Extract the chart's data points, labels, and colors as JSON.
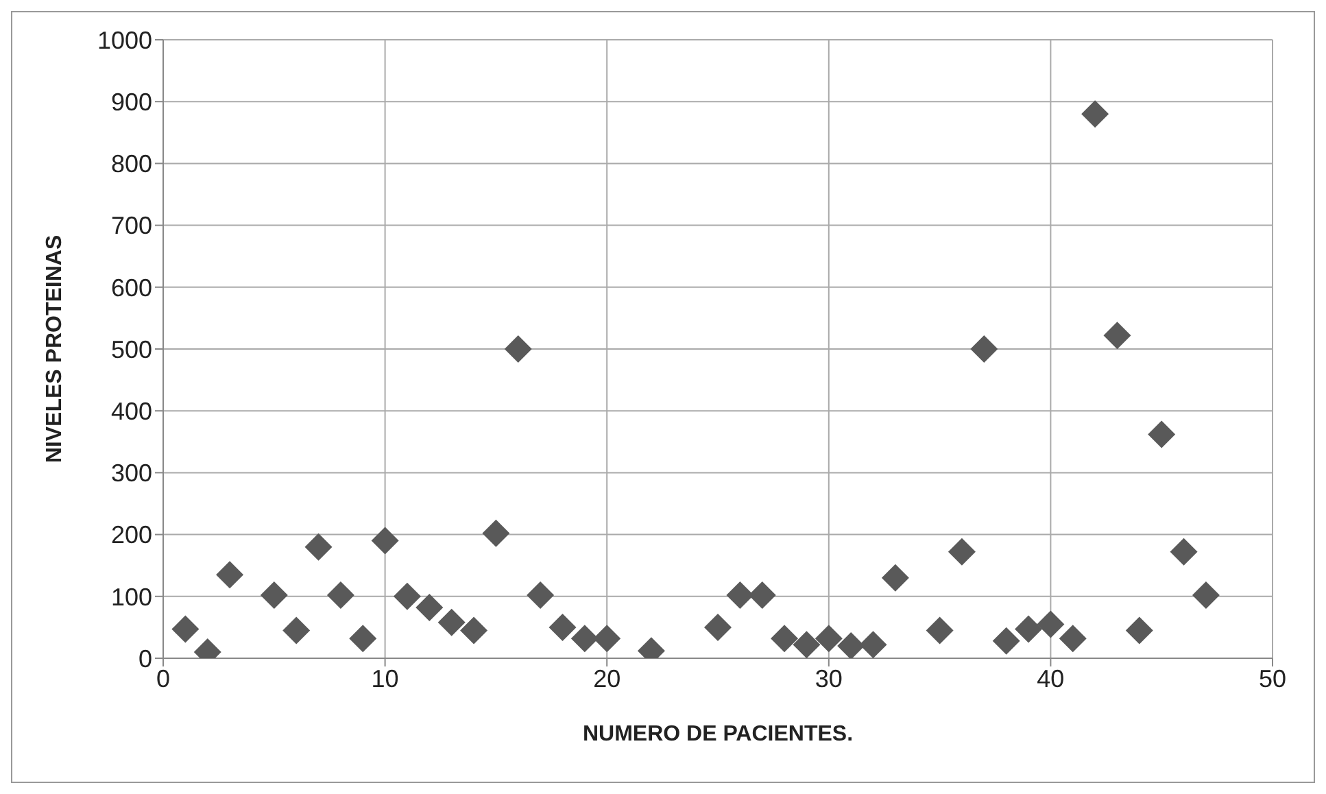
{
  "chart_data": {
    "type": "scatter",
    "xlabel": "NUMERO DE PACIENTES.",
    "ylabel": "NIVELES PROTEINAS",
    "x": [
      1,
      2,
      3,
      5,
      6,
      7,
      8,
      9,
      10,
      11,
      12,
      13,
      14,
      15,
      16,
      17,
      18,
      19,
      20,
      22,
      25,
      26,
      27,
      28,
      29,
      30,
      31,
      32,
      33,
      35,
      36,
      37,
      38,
      39,
      40,
      41,
      42,
      43,
      44,
      45,
      46,
      47
    ],
    "series": [
      {
        "color": "#595959",
        "values": [
          47,
          10,
          135,
          102,
          45,
          180,
          102,
          32,
          190,
          100,
          82,
          58,
          45,
          202,
          500,
          102,
          50,
          32,
          32,
          12,
          50,
          102,
          102,
          32,
          22,
          32,
          20,
          22,
          130,
          45,
          172,
          500,
          28,
          47,
          55,
          32,
          880,
          522,
          45,
          362,
          172,
          102
        ]
      }
    ],
    "xlim": [
      0,
      50
    ],
    "xticks": [
      0,
      10,
      20,
      30,
      40,
      50
    ],
    "ylim": [
      0,
      1000
    ],
    "yticks": [
      0,
      100,
      200,
      300,
      400,
      500,
      600,
      700,
      800,
      900,
      1000
    ],
    "grid": true,
    "marker": "diamond",
    "legend": false
  }
}
